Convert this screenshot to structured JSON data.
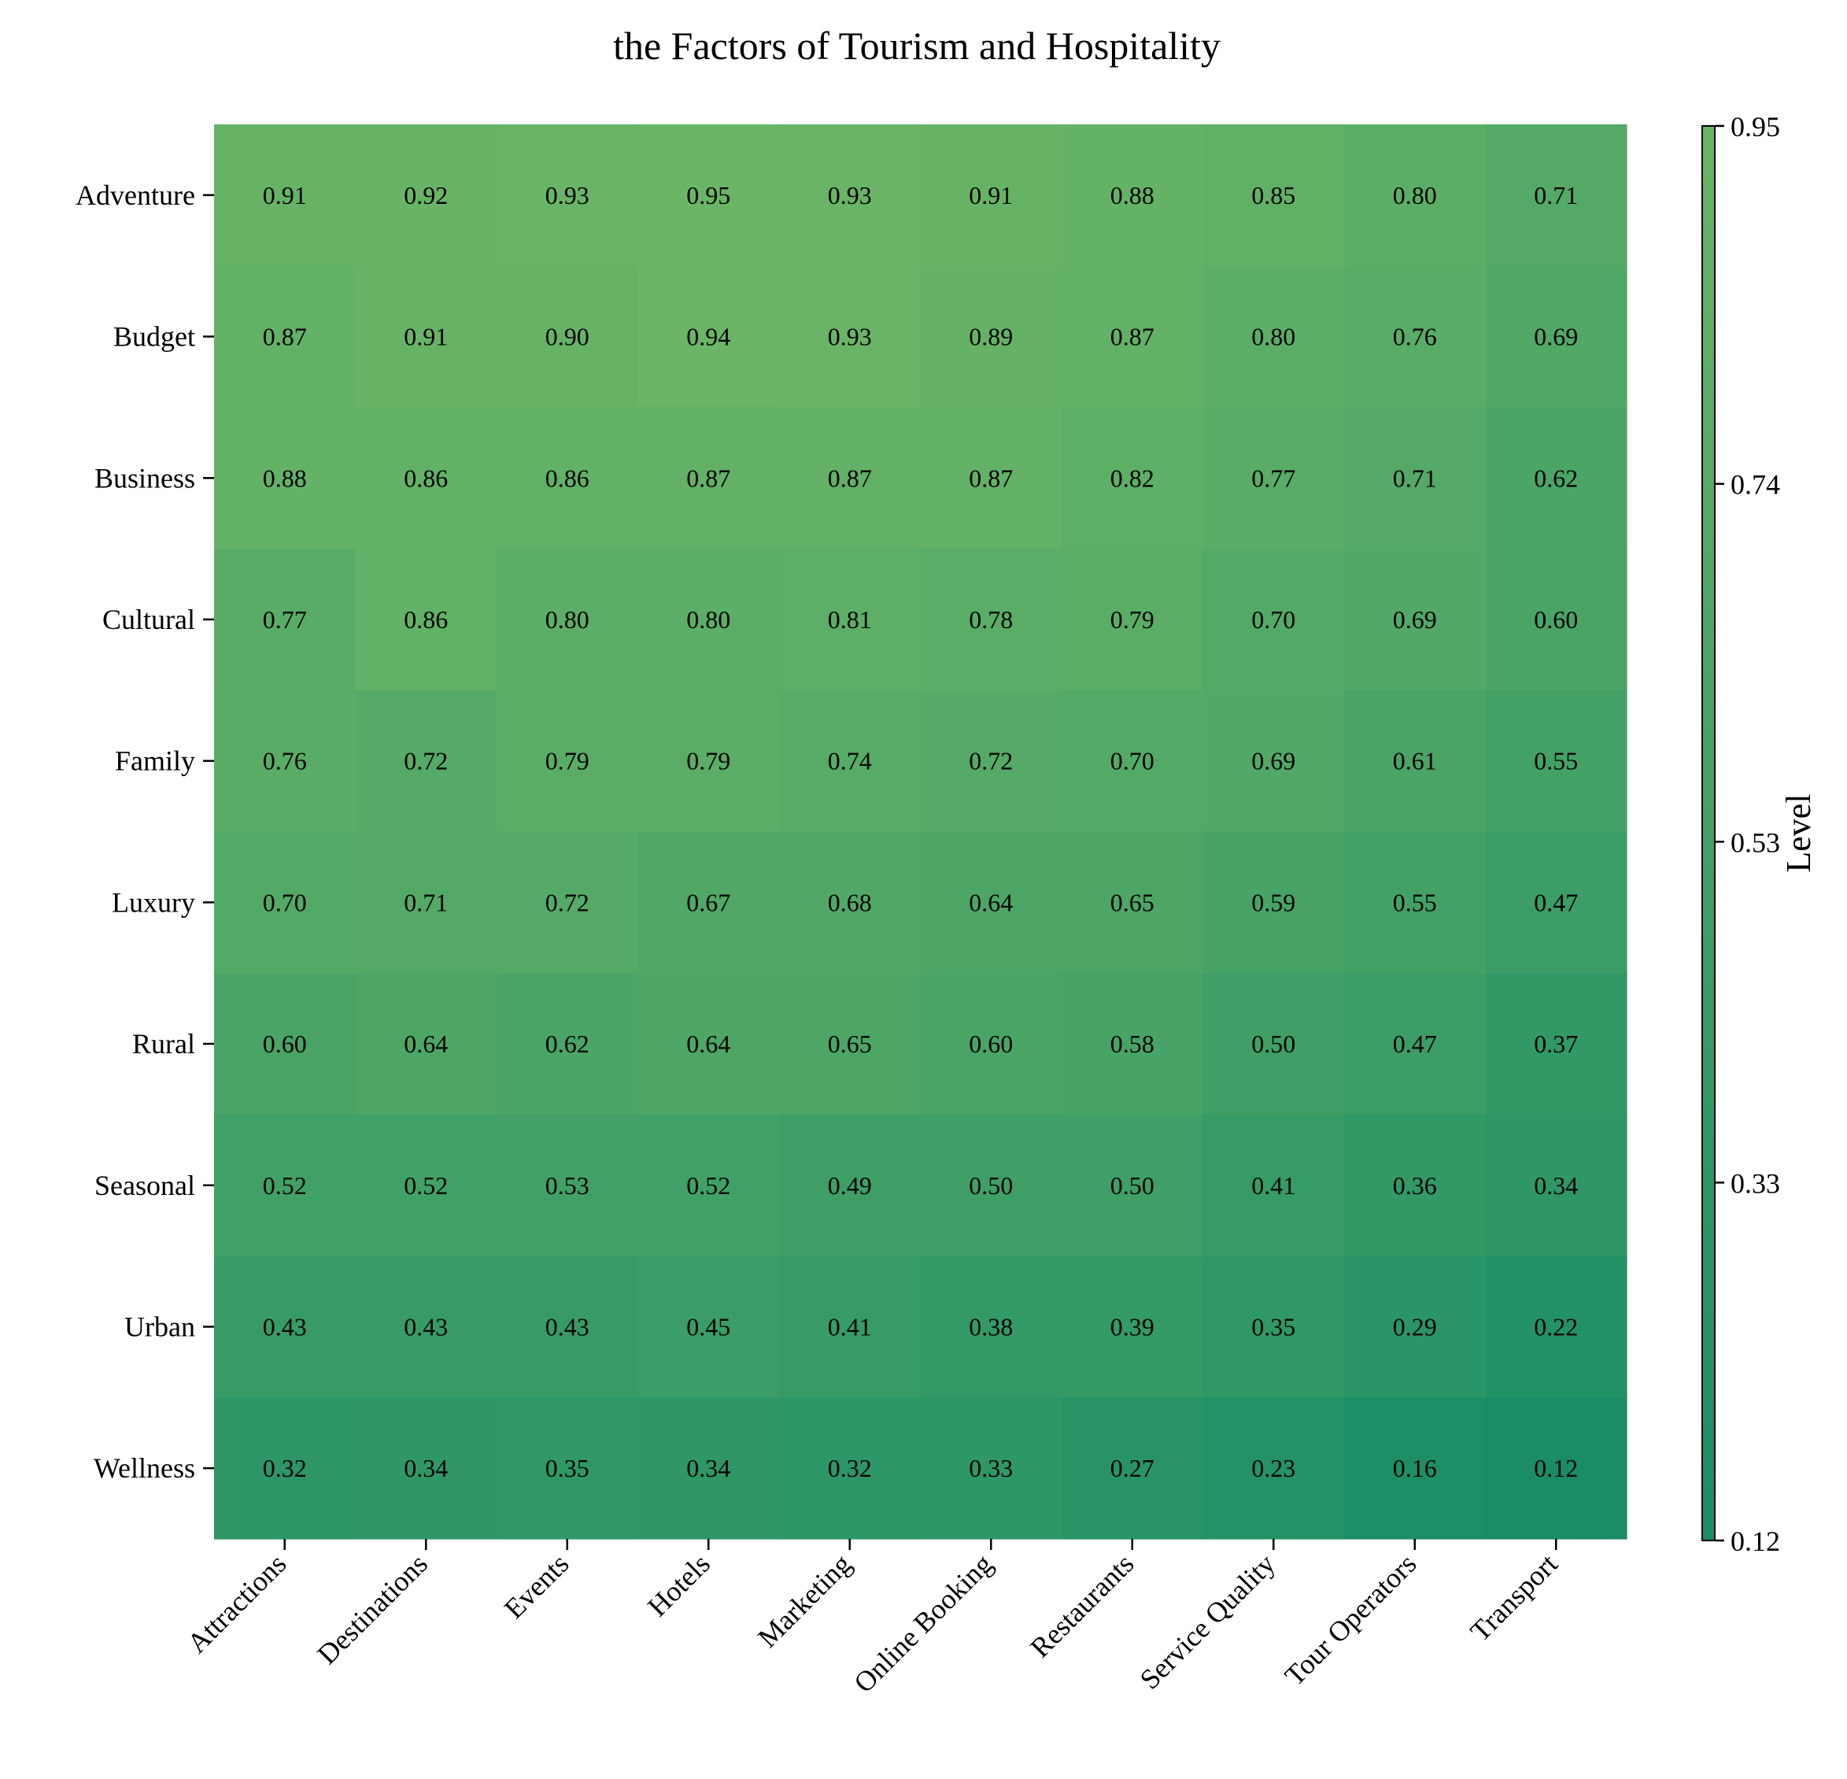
{
  "chart_data": {
    "type": "heatmap",
    "title": "the Factors of Tourism and Hospitality",
    "xlabel": "",
    "ylabel": "",
    "x_categories": [
      "Attractions",
      "Destinations",
      "Events",
      "Hotels",
      "Marketing",
      "Online Booking",
      "Restaurants",
      "Service Quality",
      "Tour Operators",
      "Transport"
    ],
    "y_categories": [
      "Adventure",
      "Budget",
      "Business",
      "Cultural",
      "Family",
      "Luxury",
      "Rural",
      "Seasonal",
      "Urban",
      "Wellness"
    ],
    "values": [
      [
        0.91,
        0.92,
        0.93,
        0.95,
        0.93,
        0.91,
        0.88,
        0.85,
        0.8,
        0.71
      ],
      [
        0.87,
        0.91,
        0.9,
        0.94,
        0.93,
        0.89,
        0.87,
        0.8,
        0.76,
        0.69
      ],
      [
        0.88,
        0.86,
        0.86,
        0.87,
        0.87,
        0.87,
        0.82,
        0.77,
        0.71,
        0.62
      ],
      [
        0.77,
        0.86,
        0.8,
        0.8,
        0.81,
        0.78,
        0.79,
        0.7,
        0.69,
        0.6
      ],
      [
        0.76,
        0.72,
        0.79,
        0.79,
        0.74,
        0.72,
        0.7,
        0.69,
        0.61,
        0.55
      ],
      [
        0.7,
        0.71,
        0.72,
        0.67,
        0.68,
        0.64,
        0.65,
        0.59,
        0.55,
        0.47
      ],
      [
        0.6,
        0.64,
        0.62,
        0.64,
        0.65,
        0.6,
        0.58,
        0.5,
        0.47,
        0.37
      ],
      [
        0.52,
        0.52,
        0.53,
        0.52,
        0.49,
        0.5,
        0.5,
        0.41,
        0.36,
        0.34
      ],
      [
        0.43,
        0.43,
        0.43,
        0.45,
        0.41,
        0.38,
        0.39,
        0.35,
        0.29,
        0.22
      ],
      [
        0.32,
        0.34,
        0.35,
        0.34,
        0.32,
        0.33,
        0.27,
        0.23,
        0.16,
        0.12
      ]
    ],
    "colorbar": {
      "label": "Level",
      "min": 0.12,
      "max": 0.95,
      "ticks": [
        "0.12",
        "0.33",
        "0.53",
        "0.74",
        "0.95"
      ],
      "colormap": "summer_r",
      "color_low": "#008066",
      "color_high": "#ffff66"
    },
    "grid": false,
    "cell_label_format": "2 decimals"
  }
}
